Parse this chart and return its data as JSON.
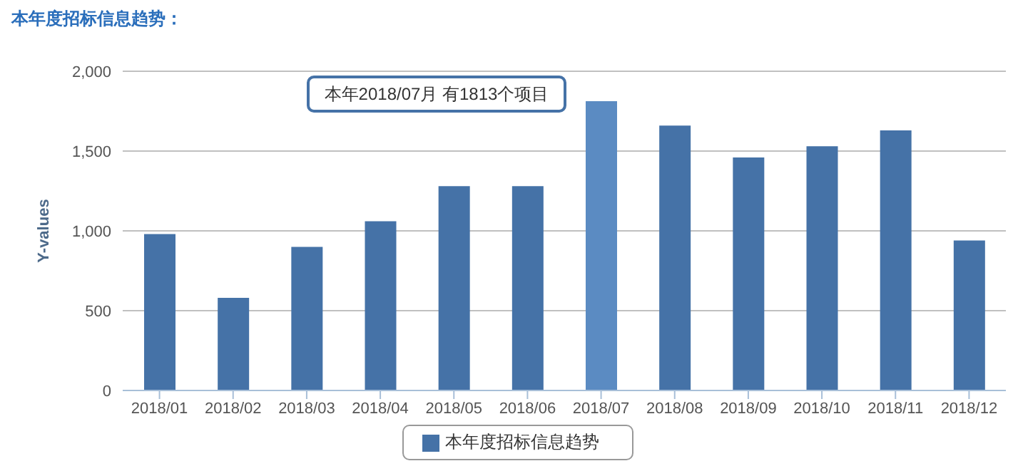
{
  "chart_data": {
    "type": "bar",
    "title": "本年度招标信息趋势：",
    "ylabel": "Y-values",
    "categories": [
      "2018/01",
      "2018/02",
      "2018/03",
      "2018/04",
      "2018/05",
      "2018/06",
      "2018/07",
      "2018/08",
      "2018/09",
      "2018/10",
      "2018/11",
      "2018/12"
    ],
    "series": [
      {
        "name": "本年度招标信息趋势",
        "color": "#4572a7",
        "values": [
          980,
          580,
          900,
          1060,
          1280,
          1280,
          1813,
          1660,
          1460,
          1530,
          1630,
          940
        ],
        "colors": [
          "#4572a7",
          "#4572a7",
          "#4572a7",
          "#4572a7",
          "#4572a7",
          "#4572a7",
          "#5b8bc2",
          "#4572a7",
          "#4572a7",
          "#4572a7",
          "#4572a7",
          "#4572a7"
        ]
      }
    ],
    "ylim": [
      0,
      2000
    ],
    "yticks": [
      0,
      500,
      {
        "value": 1000,
        "label": "1,000"
      },
      {
        "value": 1500,
        "label": "1,500"
      },
      {
        "value": 2000,
        "label": "2,000"
      }
    ],
    "grid": "y",
    "legend": "bottom",
    "annotations": [
      "本年2018/07月 有1813个项目"
    ]
  }
}
